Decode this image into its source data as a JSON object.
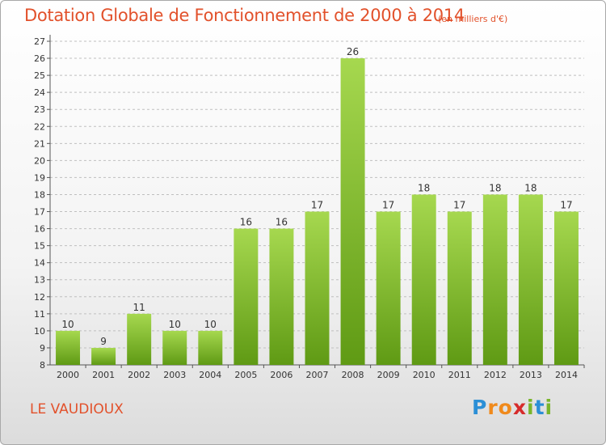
{
  "title": "Dotation Globale de Fonctionnement de 2000 à 2014",
  "subtitle": "(en milliers d'€)",
  "commune": "LE VAUDIOUX",
  "logo": {
    "text": "Proxiti",
    "letters": [
      {
        "ch": "P",
        "color": "#2b8fd6"
      },
      {
        "ch": "r",
        "color": "#f08a1c"
      },
      {
        "ch": "o",
        "color": "#f08a1c"
      },
      {
        "ch": "x",
        "color": "#d62b2b"
      },
      {
        "ch": "i",
        "color": "#7ab52b"
      },
      {
        "ch": "t",
        "color": "#2b8fd6"
      },
      {
        "ch": "i",
        "color": "#7ab52b"
      }
    ]
  },
  "colors": {
    "accent": "#e2512b",
    "bar_light": "#a6d84f",
    "bar_dark": "#5f9a14",
    "axis": "#555555",
    "grid": "#bfbfbf"
  },
  "chart_data": {
    "type": "bar",
    "categories": [
      "2000",
      "2001",
      "2002",
      "2003",
      "2004",
      "2005",
      "2006",
      "2007",
      "2008",
      "2009",
      "2010",
      "2011",
      "2012",
      "2013",
      "2014"
    ],
    "values": [
      10,
      9,
      11,
      10,
      10,
      16,
      16,
      17,
      26,
      17,
      18,
      17,
      18,
      18,
      17
    ],
    "ylim": [
      8,
      27
    ],
    "yticks": [
      8,
      9,
      10,
      11,
      12,
      13,
      14,
      15,
      16,
      17,
      18,
      19,
      20,
      21,
      22,
      23,
      24,
      25,
      26,
      27
    ],
    "grid": "dashed horizontal",
    "data_labels": true
  }
}
